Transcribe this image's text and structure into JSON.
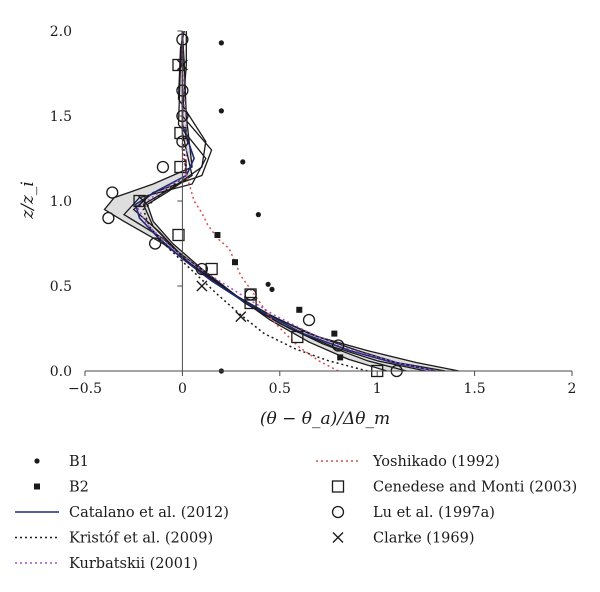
{
  "chart_data": {
    "type": "scatter",
    "xlabel": "(θ − θ_a)/Δθ_m",
    "ylabel": "z/z_i",
    "xlim": [
      -0.5,
      2
    ],
    "ylim": [
      0,
      2
    ],
    "x_ticks": [
      -0.5,
      0,
      0.5,
      1,
      1.5,
      2
    ],
    "x_tick_labels": [
      "−0.5",
      "0",
      "0.5",
      "1",
      "1.5",
      "2"
    ],
    "y_ticks": [
      0,
      0.5,
      1,
      1.5,
      2
    ],
    "y_tick_labels": [
      "0.0",
      "0.5",
      "1.0",
      "1.5",
      "2.0"
    ],
    "grid": false,
    "legend_position": "bottom",
    "colors": {
      "black": "#1a1a1a",
      "navy": "#1f2a7a",
      "red": "#d94f4f",
      "purple": "#a64dcc",
      "band_fill": "#d3d3d3"
    },
    "lines_without_legend": [
      {
        "points": [
          [
            1.42,
            0
          ],
          [
            1.2,
            0.05
          ],
          [
            0.95,
            0.12
          ],
          [
            0.7,
            0.2
          ],
          [
            0.5,
            0.3
          ],
          [
            0.3,
            0.42
          ],
          [
            0.1,
            0.58
          ],
          [
            -0.1,
            0.75
          ],
          [
            -0.3,
            0.88
          ],
          [
            -0.4,
            0.95
          ],
          [
            -0.35,
            1.02
          ],
          [
            -0.15,
            1.1
          ],
          [
            0.05,
            1.2
          ],
          [
            0.02,
            1.5
          ],
          [
            0.01,
            1.8
          ],
          [
            0.0,
            2.0
          ]
        ]
      },
      {
        "points": [
          [
            1.35,
            0
          ],
          [
            1.1,
            0.05
          ],
          [
            0.9,
            0.12
          ],
          [
            0.65,
            0.22
          ],
          [
            0.45,
            0.33
          ],
          [
            0.25,
            0.46
          ],
          [
            0.05,
            0.62
          ],
          [
            -0.1,
            0.78
          ],
          [
            -0.3,
            0.92
          ],
          [
            -0.22,
            1.02
          ],
          [
            0.05,
            1.1
          ],
          [
            0.12,
            1.25
          ],
          [
            -0.02,
            1.45
          ],
          [
            -0.01,
            1.8
          ],
          [
            0.0,
            2.0
          ]
        ]
      },
      {
        "points": [
          [
            1.25,
            0
          ],
          [
            1.0,
            0.06
          ],
          [
            0.78,
            0.14
          ],
          [
            0.55,
            0.25
          ],
          [
            0.38,
            0.36
          ],
          [
            0.2,
            0.5
          ],
          [
            0.02,
            0.65
          ],
          [
            -0.12,
            0.82
          ],
          [
            -0.25,
            0.95
          ],
          [
            -0.15,
            1.05
          ],
          [
            0.1,
            1.15
          ],
          [
            0.15,
            1.3
          ],
          [
            0.0,
            1.5
          ],
          [
            0.02,
            1.8
          ],
          [
            0.02,
            2.0
          ]
        ]
      },
      {
        "points": [
          [
            1.15,
            0
          ],
          [
            0.95,
            0.06
          ],
          [
            0.72,
            0.16
          ],
          [
            0.5,
            0.28
          ],
          [
            0.32,
            0.4
          ],
          [
            0.15,
            0.55
          ],
          [
            -0.02,
            0.7
          ],
          [
            -0.15,
            0.85
          ],
          [
            -0.2,
            0.98
          ],
          [
            -0.05,
            1.08
          ],
          [
            0.1,
            1.2
          ],
          [
            0.12,
            1.35
          ],
          [
            -0.02,
            1.6
          ],
          [
            -0.01,
            1.9
          ],
          [
            0.01,
            2.0
          ]
        ]
      },
      {
        "points": [
          [
            1.05,
            0
          ],
          [
            0.85,
            0.07
          ],
          [
            0.65,
            0.17
          ],
          [
            0.45,
            0.3
          ],
          [
            0.28,
            0.44
          ],
          [
            0.1,
            0.6
          ],
          [
            -0.05,
            0.75
          ],
          [
            -0.15,
            0.88
          ],
          [
            -0.18,
            0.98
          ],
          [
            -0.08,
            1.05
          ],
          [
            0.05,
            1.15
          ],
          [
            0.0,
            1.4
          ],
          [
            0.0,
            1.75
          ],
          [
            0.0,
            2.0
          ]
        ]
      }
    ],
    "series": [
      {
        "name": "B1",
        "marker": "dot",
        "points": [
          [
            0.2,
            1.93
          ],
          [
            0.2,
            1.53
          ],
          [
            0.31,
            1.23
          ],
          [
            0.39,
            0.92
          ],
          [
            0.44,
            0.51
          ],
          [
            0.46,
            0.48
          ],
          [
            0.2,
            0.0
          ]
        ]
      },
      {
        "name": "B2",
        "marker": "square-filled",
        "points": [
          [
            0.18,
            0.8
          ],
          [
            0.27,
            0.64
          ],
          [
            0.6,
            0.36
          ],
          [
            0.78,
            0.22
          ],
          [
            0.81,
            0.08
          ]
        ]
      },
      {
        "name": "Catalano et al. (2012)",
        "line": "solid",
        "color": "navy",
        "points": [
          [
            1.3,
            0
          ],
          [
            1.08,
            0.05
          ],
          [
            0.86,
            0.12
          ],
          [
            0.62,
            0.22
          ],
          [
            0.44,
            0.33
          ],
          [
            0.3,
            0.42
          ],
          [
            0.15,
            0.53
          ],
          [
            0.0,
            0.66
          ],
          [
            -0.12,
            0.78
          ],
          [
            -0.22,
            0.9
          ],
          [
            -0.24,
            0.98
          ],
          [
            -0.13,
            1.06
          ],
          [
            0.02,
            1.15
          ],
          [
            0.06,
            1.25
          ],
          [
            0.0,
            1.45
          ],
          [
            0.0,
            1.75
          ],
          [
            0.0,
            2.0
          ]
        ]
      },
      {
        "name": "Kristóf et al. (2009)",
        "line": "dotted",
        "color": "black",
        "points": [
          [
            0.95,
            0
          ],
          [
            0.75,
            0.06
          ],
          [
            0.58,
            0.13
          ],
          [
            0.42,
            0.22
          ],
          [
            0.3,
            0.33
          ],
          [
            0.18,
            0.45
          ],
          [
            0.06,
            0.58
          ],
          [
            -0.07,
            0.72
          ],
          [
            -0.17,
            0.85
          ],
          [
            -0.2,
            0.95
          ],
          [
            -0.1,
            1.05
          ],
          [
            0.02,
            1.15
          ],
          [
            0.0,
            1.4
          ],
          [
            0.0,
            1.75
          ],
          [
            0.0,
            2.0
          ]
        ]
      },
      {
        "name": "Kurbatskii (2001)",
        "line": "dotted",
        "color": "purple",
        "points": [
          [
            1.3,
            0
          ],
          [
            1.1,
            0.05
          ],
          [
            0.88,
            0.12
          ],
          [
            0.66,
            0.22
          ],
          [
            0.47,
            0.33
          ],
          [
            0.3,
            0.45
          ],
          [
            0.12,
            0.58
          ],
          [
            -0.05,
            0.72
          ],
          [
            -0.18,
            0.86
          ],
          [
            -0.23,
            0.96
          ],
          [
            -0.12,
            1.05
          ],
          [
            0.02,
            1.15
          ],
          [
            0.02,
            1.45
          ],
          [
            0.0,
            1.8
          ],
          [
            0.0,
            2.0
          ]
        ]
      },
      {
        "name": "Yoshikado (1992)",
        "line": "dotted",
        "color": "red",
        "points": [
          [
            0.8,
            0
          ],
          [
            0.7,
            0.06
          ],
          [
            0.6,
            0.14
          ],
          [
            0.52,
            0.23
          ],
          [
            0.46,
            0.3
          ],
          [
            0.4,
            0.4
          ],
          [
            0.35,
            0.48
          ],
          [
            0.3,
            0.56
          ],
          [
            0.27,
            0.64
          ],
          [
            0.24,
            0.72
          ],
          [
            0.18,
            0.78
          ],
          [
            0.13,
            0.86
          ],
          [
            0.1,
            0.93
          ],
          [
            0.06,
            1.0
          ],
          [
            0.04,
            1.08
          ],
          [
            0.02,
            1.15
          ],
          [
            0.0,
            1.3
          ],
          [
            0.0,
            1.5
          ],
          [
            0.0,
            1.8
          ],
          [
            0.0,
            2.0
          ]
        ]
      },
      {
        "name": "Cenedese and Monti (2003)",
        "marker": "square-open",
        "points": [
          [
            1.0,
            0.0
          ],
          [
            0.59,
            0.2
          ],
          [
            0.35,
            0.4
          ],
          [
            0.35,
            0.45
          ],
          [
            0.15,
            0.6
          ],
          [
            -0.02,
            0.8
          ],
          [
            -0.22,
            1.0
          ],
          [
            -0.01,
            1.2
          ],
          [
            -0.01,
            1.4
          ],
          [
            -0.02,
            1.8
          ]
        ]
      },
      {
        "name": "Lu et al. (1997a)",
        "marker": "circle-open",
        "points": [
          [
            1.1,
            0.0
          ],
          [
            0.8,
            0.15
          ],
          [
            0.65,
            0.3
          ],
          [
            0.35,
            0.45
          ],
          [
            0.1,
            0.6
          ],
          [
            -0.14,
            0.75
          ],
          [
            -0.38,
            0.9
          ],
          [
            -0.36,
            1.05
          ],
          [
            -0.1,
            1.2
          ],
          [
            0.0,
            1.35
          ],
          [
            0.0,
            1.5
          ],
          [
            0.0,
            1.65
          ],
          [
            0.0,
            1.95
          ]
        ]
      },
      {
        "name": "Clarke (1969)",
        "marker": "cross",
        "points": [
          [
            0.3,
            0.32
          ],
          [
            0.1,
            0.5
          ],
          [
            -0.2,
            1.0
          ],
          [
            0.0,
            1.8
          ]
        ]
      }
    ]
  }
}
